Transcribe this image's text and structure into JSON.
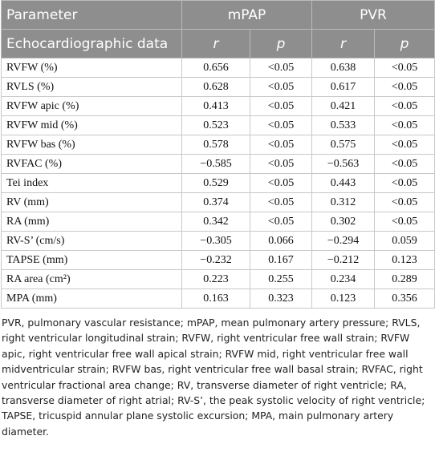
{
  "table": {
    "header": [
      "Parameter",
      "mPAP",
      "PVR"
    ],
    "subheader": [
      "Echocardiographic data",
      "r",
      "p",
      "r",
      "p"
    ],
    "rows": [
      [
        "RVFW (%)",
        "0.656",
        "<0.05",
        "0.638",
        "<0.05"
      ],
      [
        "RVLS (%)",
        "0.628",
        "<0.05",
        "0.617",
        "<0.05"
      ],
      [
        "RVFW apic (%)",
        "0.413",
        "<0.05",
        "0.421",
        "<0.05"
      ],
      [
        "RVFW mid (%)",
        "0.523",
        "<0.05",
        "0.533",
        "<0.05"
      ],
      [
        "RVFW bas (%)",
        "0.578",
        "<0.05",
        "0.575",
        "<0.05"
      ],
      [
        "RVFAC (%)",
        "−0.585",
        "<0.05",
        "−0.563",
        "<0.05"
      ],
      [
        "Tei index",
        "0.529",
        "<0.05",
        "0.443",
        "<0.05"
      ],
      [
        "RV (mm)",
        "0.374",
        "<0.05",
        "0.312",
        "<0.05"
      ],
      [
        "RA (mm)",
        "0.342",
        "<0.05",
        "0.302",
        "<0.05"
      ],
      [
        "RV-S’ (cm/s)",
        "−0.305",
        "0.066",
        "−0.294",
        "0.059"
      ],
      [
        "TAPSE (mm)",
        "−0.232",
        "0.167",
        "−0.212",
        "0.123"
      ],
      [
        "RA area (cm²)",
        "0.223",
        "0.255",
        "0.234",
        "0.289"
      ],
      [
        "MPA (mm)",
        "0.163",
        "0.323",
        "0.123",
        "0.356"
      ]
    ]
  },
  "footnote": "PVR, pulmonary vascular resistance; mPAP, mean pulmonary artery pressure; RVLS, right ventricular longitudinal strain; RVFW, right ventricular free wall strain; RVFW apic, right ventricular free wall apical strain; RVFW mid, right ventricular free wall midventricular strain; RVFW bas, right ventricular free wall basal strain; RVFAC, right ventricular fractional area change; RV, transverse diameter of right ventricle; RA, transverse diameter of right atrial; RV-S’, the peak systolic velocity of right ventricle; TAPSE, tricuspid annular plane systolic excursion; MPA, main pulmonary artery diameter."
}
